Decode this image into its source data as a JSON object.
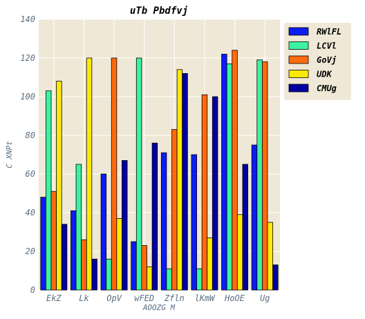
{
  "chart_data": {
    "type": "bar",
    "title": "uTb  Pbdfvj",
    "xlabel": "AOOZG M",
    "ylabel": "C  XNPt",
    "categories": [
      "EkZ",
      "Lk",
      "OpV",
      "wFED",
      "Zfln",
      "lKmW",
      "HoOE",
      "Ug"
    ],
    "ylim": [
      0,
      140
    ],
    "yticks": [
      0,
      20,
      40,
      60,
      80,
      100,
      120,
      140
    ],
    "grid": true,
    "legend_position": "top-right",
    "series": [
      {
        "name": "RWlFL",
        "color": "#0b1cf5",
        "values": [
          48,
          41,
          60,
          25,
          71,
          70,
          122,
          75
        ]
      },
      {
        "name": "LCVl",
        "color": "#3cf2a4",
        "values": [
          103,
          65,
          16,
          120,
          11,
          11,
          117,
          119
        ]
      },
      {
        "name": "GoVj",
        "color": "#ff6a0d",
        "values": [
          51,
          26,
          120,
          23,
          83,
          101,
          124,
          118
        ]
      },
      {
        "name": "UDK",
        "color": "#fce90b",
        "values": [
          108,
          120,
          37,
          12,
          114,
          27,
          39,
          35
        ]
      },
      {
        "name": "CMUg",
        "color": "#0000a0",
        "values": [
          34,
          16,
          67,
          76,
          112,
          100,
          65,
          13
        ]
      }
    ]
  }
}
